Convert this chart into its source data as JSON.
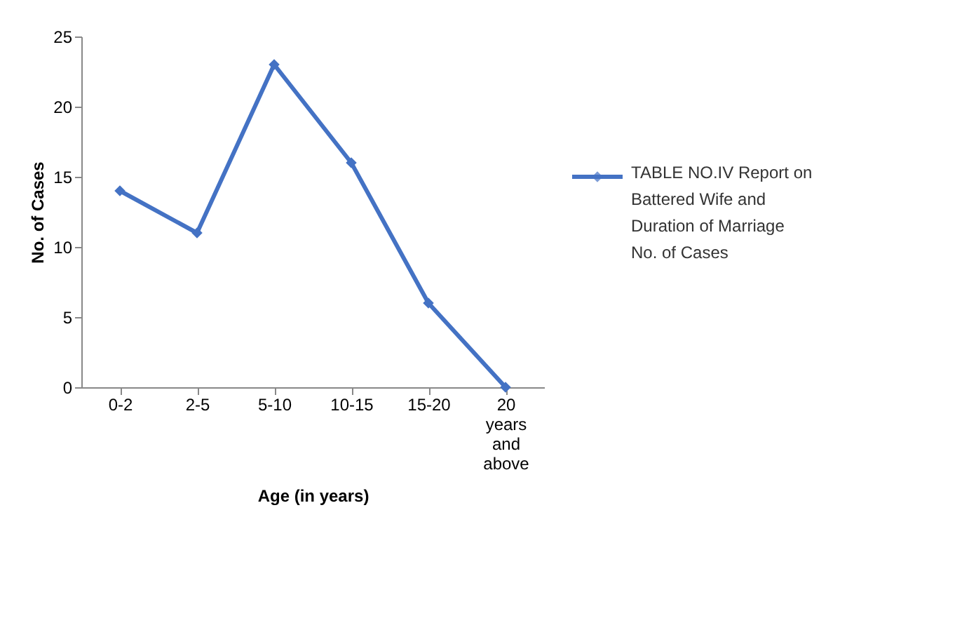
{
  "chart_data": {
    "type": "line",
    "xlabel": "Age (in years)",
    "ylabel": "No. of Cases",
    "categories": [
      "0-2",
      "2-5",
      "5-10",
      "10-15",
      "15-20",
      "20 years and above"
    ],
    "series": [
      {
        "name": "TABLE NO.IV Report on Battered Wife and Duration of Marriage No. of Cases",
        "color": "#4472c4",
        "values": [
          14,
          11,
          23,
          16,
          6,
          0
        ]
      }
    ],
    "ylim": [
      0,
      25
    ],
    "yticks": [
      0,
      5,
      10,
      15,
      20,
      25
    ],
    "grid": false,
    "legend": "right",
    "marker": "diamond",
    "line_style": "solid"
  }
}
